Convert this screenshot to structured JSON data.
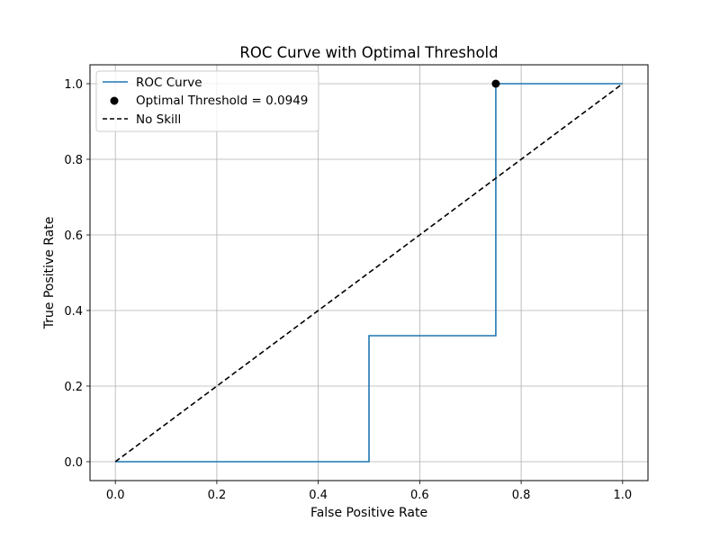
{
  "chart_data": {
    "type": "line",
    "title": "ROC Curve with Optimal Threshold",
    "xlabel": "False Positive Rate",
    "ylabel": "True Positive Rate",
    "xlim": [
      -0.05,
      1.05
    ],
    "ylim": [
      -0.05,
      1.05
    ],
    "xticks": [
      0.0,
      0.2,
      0.4,
      0.6,
      0.8,
      1.0
    ],
    "yticks": [
      0.0,
      0.2,
      0.4,
      0.6,
      0.8,
      1.0
    ],
    "xtick_labels": [
      "0.0",
      "0.2",
      "0.4",
      "0.6",
      "0.8",
      "1.0"
    ],
    "ytick_labels": [
      "0.0",
      "0.2",
      "0.4",
      "0.6",
      "0.8",
      "1.0"
    ],
    "grid": true,
    "legend_position": "top-left",
    "series": [
      {
        "name": "ROC Curve",
        "kind": "line",
        "color": "#1f77b4",
        "x": [
          0.0,
          0.5,
          0.5,
          0.75,
          0.75,
          1.0
        ],
        "y": [
          0.0,
          0.0,
          0.3333,
          0.3333,
          1.0,
          1.0
        ]
      },
      {
        "name": "Optimal Threshold = 0.0949",
        "kind": "point",
        "color": "#000000",
        "x": [
          0.75
        ],
        "y": [
          1.0
        ]
      },
      {
        "name": "No Skill",
        "kind": "dashed-line",
        "color": "#000000",
        "x": [
          0.0,
          1.0
        ],
        "y": [
          0.0,
          1.0
        ]
      }
    ]
  }
}
